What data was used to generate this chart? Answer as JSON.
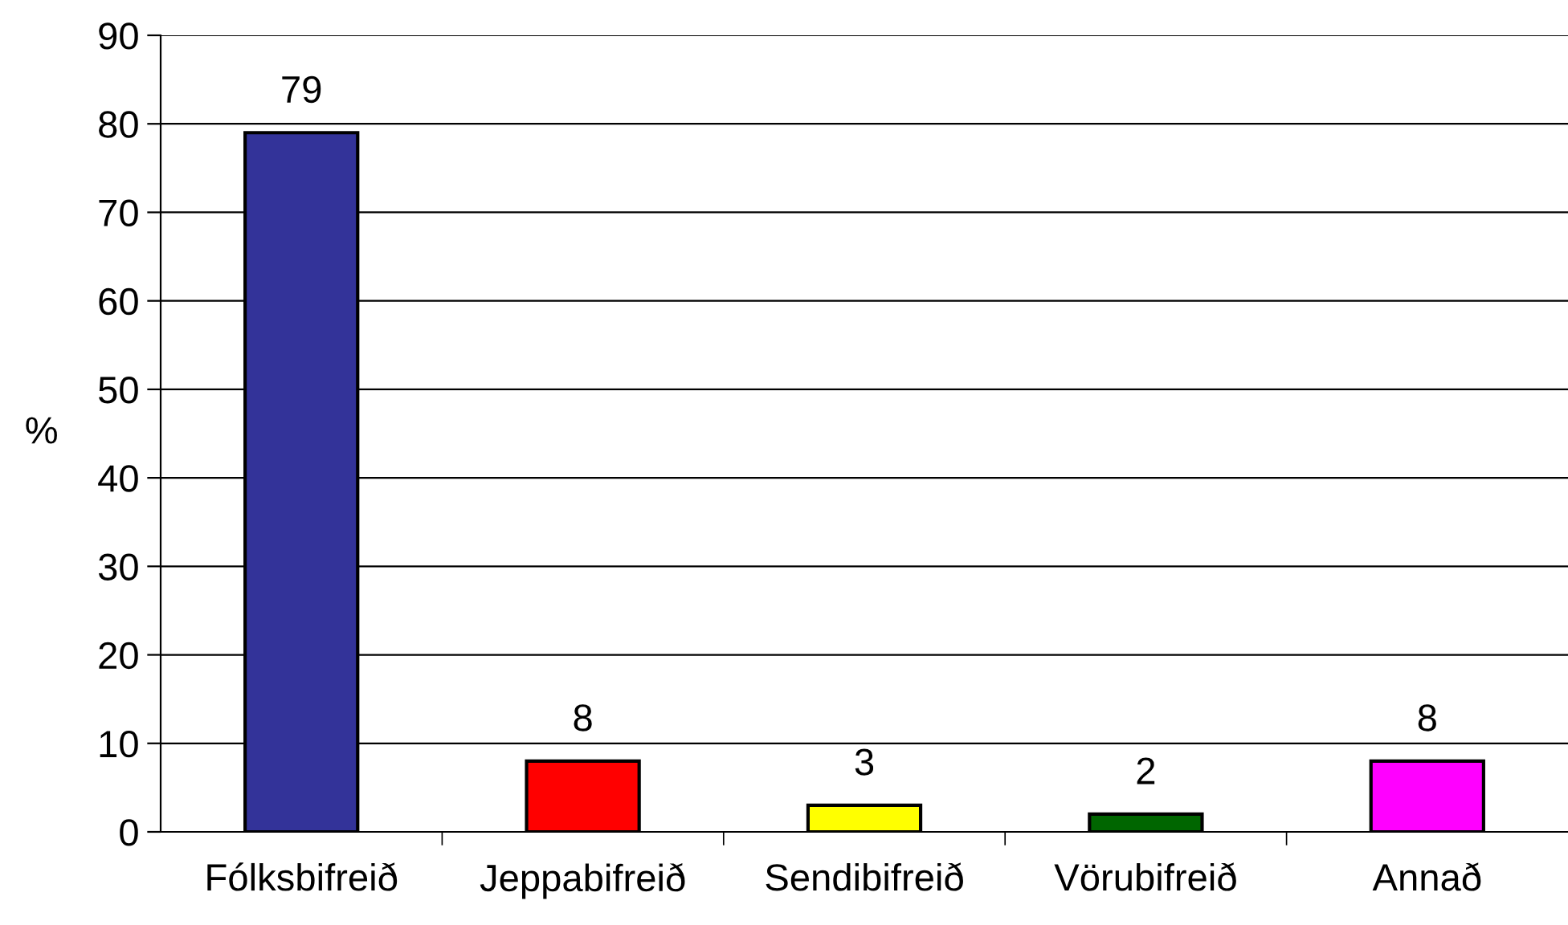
{
  "chart_data": {
    "type": "bar",
    "ylabel": "%",
    "categories": [
      "Fólksbifreið",
      "Jeppabifreið",
      "Sendibifreið",
      "Vörubifreið",
      "Annað"
    ],
    "values": [
      79,
      8,
      3,
      2,
      8
    ],
    "colors": [
      "#333399",
      "#ff0000",
      "#ffff00",
      "#006600",
      "#ff00ff"
    ],
    "ylim": [
      0,
      90
    ],
    "yticks": [
      0,
      10,
      20,
      30,
      40,
      50,
      60,
      70,
      80,
      90
    ],
    "grid": "y",
    "data_labels": true
  }
}
